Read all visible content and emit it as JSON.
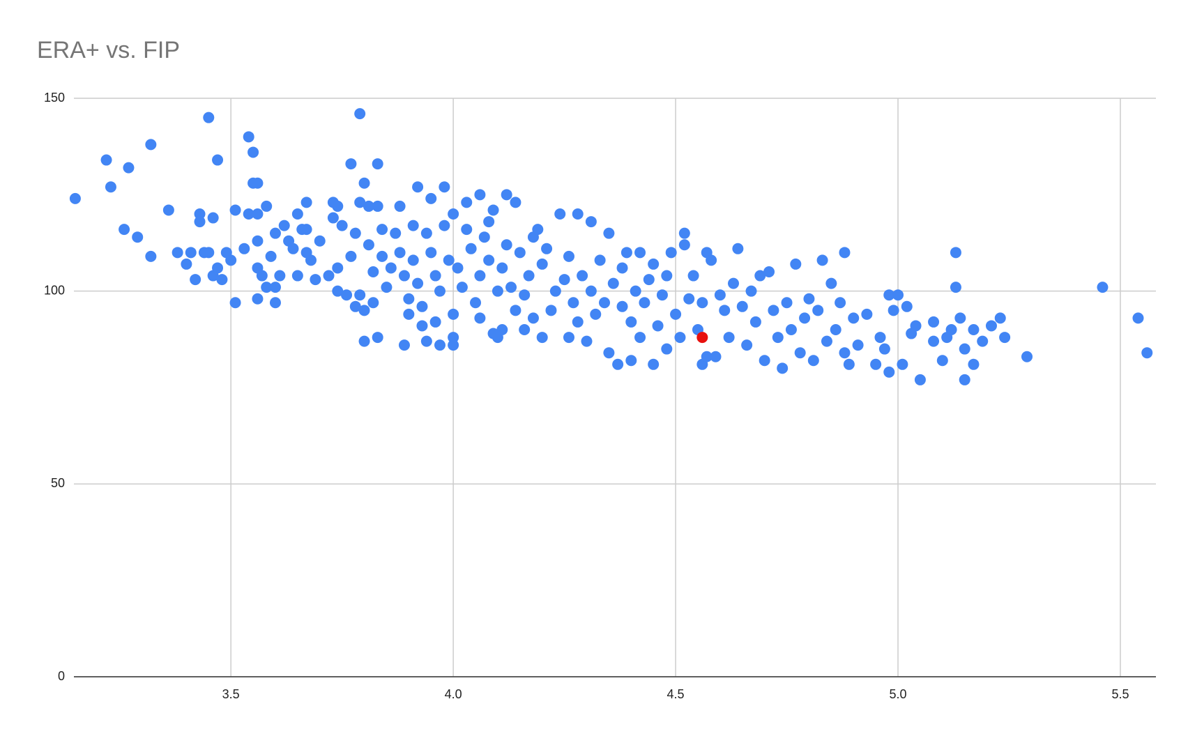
{
  "chart_data": {
    "type": "scatter",
    "title": "ERA+ vs. FIP",
    "xlim": [
      3.147,
      5.58
    ],
    "ylim": [
      0,
      150
    ],
    "xticks": [
      3.5,
      {
        "value": 4,
        "label": "4.0"
      },
      4.5,
      {
        "value": 5,
        "label": "5.0"
      },
      5.5
    ],
    "yticks": [
      0,
      50,
      100,
      150
    ],
    "grid": true,
    "series": [
      {
        "color": "#4285f4",
        "x": [
          3.15,
          3.22,
          3.23,
          3.26,
          3.27,
          3.29,
          3.32,
          3.32,
          3.36,
          3.38,
          3.4,
          3.41,
          3.42,
          3.43,
          3.43,
          3.44,
          3.45,
          3.45,
          3.46,
          3.46,
          3.47,
          3.47,
          3.48,
          3.49,
          3.5,
          3.51,
          3.51,
          3.53,
          3.54,
          3.54,
          3.55,
          3.55,
          3.56,
          3.56,
          3.56,
          3.56,
          3.56,
          3.57,
          3.58,
          3.58,
          3.59,
          3.6,
          3.6,
          3.6,
          3.61,
          3.62,
          3.63,
          3.64,
          3.65,
          3.65,
          3.66,
          3.67,
          3.67,
          3.67,
          3.68,
          3.69,
          3.7,
          3.72,
          3.73,
          3.73,
          3.74,
          3.74,
          3.74,
          3.75,
          3.76,
          3.77,
          3.77,
          3.78,
          3.78,
          3.79,
          3.79,
          3.79,
          3.8,
          3.8,
          3.8,
          3.81,
          3.81,
          3.82,
          3.82,
          3.83,
          3.83,
          3.83,
          3.84,
          3.84,
          3.85,
          3.86,
          3.87,
          3.88,
          3.88,
          3.89,
          3.89,
          3.9,
          3.9,
          3.91,
          3.91,
          3.92,
          3.92,
          3.93,
          3.93,
          3.94,
          3.94,
          3.95,
          3.95,
          3.96,
          3.96,
          3.97,
          3.97,
          3.98,
          3.98,
          3.99,
          4.0,
          4.0,
          4.0,
          4.0,
          4.01,
          4.02,
          4.03,
          4.03,
          4.04,
          4.05,
          4.06,
          4.06,
          4.06,
          4.07,
          4.08,
          4.08,
          4.09,
          4.09,
          4.1,
          4.1,
          4.11,
          4.11,
          4.12,
          4.12,
          4.13,
          4.14,
          4.14,
          4.15,
          4.16,
          4.16,
          4.17,
          4.18,
          4.18,
          4.19,
          4.2,
          4.2,
          4.21,
          4.22,
          4.23,
          4.24,
          4.25,
          4.26,
          4.26,
          4.27,
          4.28,
          4.28,
          4.29,
          4.3,
          4.31,
          4.31,
          4.32,
          4.33,
          4.34,
          4.35,
          4.35,
          4.36,
          4.37,
          4.38,
          4.38,
          4.39,
          4.4,
          4.4,
          4.41,
          4.42,
          4.42,
          4.43,
          4.44,
          4.45,
          4.45,
          4.46,
          4.47,
          4.48,
          4.48,
          4.49,
          4.5,
          4.51,
          4.52,
          4.52,
          4.53,
          4.54,
          4.55,
          4.56,
          4.56,
          4.57,
          4.57,
          4.58,
          4.59,
          4.6,
          4.61,
          4.62,
          4.63,
          4.64,
          4.65,
          4.66,
          4.67,
          4.68,
          4.69,
          4.7,
          4.71,
          4.72,
          4.73,
          4.74,
          4.75,
          4.76,
          4.77,
          4.78,
          4.79,
          4.8,
          4.81,
          4.82,
          4.83,
          4.84,
          4.85,
          4.86,
          4.87,
          4.88,
          4.88,
          4.89,
          4.9,
          4.91,
          4.93,
          4.95,
          4.96,
          4.97,
          4.98,
          4.98,
          4.99,
          5.0,
          5.01,
          5.02,
          5.03,
          5.04,
          5.05,
          5.08,
          5.08,
          5.1,
          5.11,
          5.12,
          5.13,
          5.13,
          5.14,
          5.15,
          5.15,
          5.17,
          5.17,
          5.19,
          5.21,
          5.23,
          5.24,
          5.29,
          5.46,
          5.54,
          5.56
        ],
        "y": [
          124,
          134,
          127,
          116,
          132,
          114,
          138,
          109,
          121,
          110,
          107,
          110,
          103,
          120,
          118,
          110,
          145,
          110,
          119,
          104,
          134,
          106,
          103,
          110,
          108,
          121,
          97,
          111,
          140,
          120,
          136,
          128,
          128,
          120,
          113,
          106,
          98,
          104,
          101,
          122,
          109,
          115,
          101,
          97,
          104,
          117,
          113,
          111,
          120,
          104,
          116,
          116,
          123,
          110,
          108,
          103,
          113,
          104,
          123,
          119,
          122,
          106,
          100,
          117,
          99,
          109,
          133,
          115,
          96,
          123,
          99,
          146,
          128,
          87,
          95,
          122,
          112,
          105,
          97,
          133,
          122,
          88,
          116,
          109,
          101,
          106,
          115,
          122,
          110,
          104,
          86,
          98,
          94,
          117,
          108,
          127,
          102,
          96,
          91,
          115,
          87,
          110,
          124,
          104,
          92,
          86,
          100,
          127,
          117,
          108,
          94,
          88,
          86,
          120,
          106,
          101,
          123,
          116,
          111,
          97,
          125,
          104,
          93,
          114,
          118,
          108,
          89,
          121,
          88,
          100,
          90,
          106,
          125,
          112,
          101,
          123,
          95,
          110,
          90,
          99,
          104,
          114,
          93,
          116,
          88,
          107,
          111,
          95,
          100,
          120,
          103,
          88,
          109,
          97,
          92,
          120,
          104,
          87,
          118,
          100,
          94,
          108,
          97,
          84,
          115,
          102,
          81,
          96,
          106,
          110,
          82,
          92,
          100,
          110,
          88,
          97,
          103,
          81,
          107,
          91,
          99,
          104,
          85,
          110,
          94,
          88,
          115,
          112,
          98,
          104,
          90,
          81,
          97,
          110,
          83,
          108,
          83,
          99,
          95,
          88,
          102,
          111,
          96,
          86,
          100,
          92,
          104,
          82,
          105,
          95,
          88,
          80,
          97,
          90,
          107,
          84,
          93,
          98,
          82,
          95,
          108,
          87,
          102,
          90,
          97,
          110,
          84,
          81,
          93,
          86,
          94,
          81,
          88,
          85,
          79,
          99,
          95,
          99,
          81,
          96,
          89,
          91,
          77,
          92,
          87,
          82,
          88,
          90,
          110,
          101,
          93,
          77,
          85,
          90,
          81,
          87,
          91,
          93,
          88,
          83,
          101,
          93,
          84
        ]
      },
      {
        "color": "#e8110f",
        "x": [
          4.56
        ],
        "y": [
          88
        ]
      }
    ]
  }
}
